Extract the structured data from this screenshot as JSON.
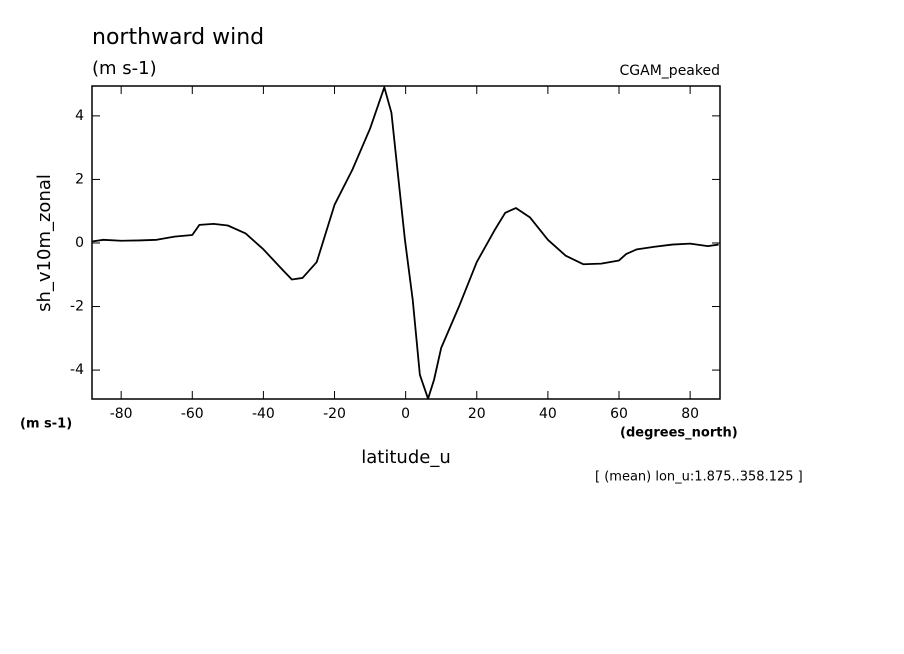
{
  "chart_data": {
    "type": "line",
    "title": "northward wind",
    "subtitle": "(m s-1)",
    "dataset": "CGAM_peaked",
    "ylabel": "sh_v10m_zonal",
    "yunits": "(m s-1)",
    "xlabel": "latitude_u",
    "xunits": "(degrees_north)",
    "note": "[ (mean) lon_u:1.875..358.125 ]",
    "xlim": [
      -88.2,
      88.4
    ],
    "ylim": [
      -4.91,
      4.94
    ],
    "xticks": [
      -80,
      -60,
      -40,
      -20,
      0,
      20,
      40,
      60,
      80
    ],
    "yticks": [
      -4,
      -2,
      0,
      2,
      4
    ],
    "series": [
      {
        "color": "#000000",
        "x": [
          -88,
          -85,
          -80,
          -75,
          -70,
          -65,
          -60,
          -58,
          -54,
          -50,
          -45,
          -40,
          -35,
          -32,
          -29,
          -25,
          -20,
          -15,
          -10,
          -6,
          -4,
          -2.3,
          -0.2,
          2,
          4,
          6.3,
          8,
          10,
          15,
          20,
          25,
          28,
          31,
          35,
          40,
          45,
          50,
          55,
          60,
          62,
          65,
          70,
          75,
          80,
          85,
          88
        ],
        "values": [
          0.05,
          0.1,
          0.07,
          0.08,
          0.1,
          0.2,
          0.25,
          0.57,
          0.6,
          0.55,
          0.3,
          -0.2,
          -0.8,
          -1.15,
          -1.1,
          -0.6,
          1.2,
          2.3,
          3.6,
          4.9,
          4.1,
          2.3,
          0.1,
          -1.8,
          -4.15,
          -4.9,
          -4.3,
          -3.3,
          -2.0,
          -0.6,
          0.4,
          0.95,
          1.1,
          0.8,
          0.1,
          -0.4,
          -0.67,
          -0.65,
          -0.55,
          -0.35,
          -0.2,
          -0.12,
          -0.05,
          -0.02,
          -0.1,
          -0.05
        ]
      }
    ]
  }
}
